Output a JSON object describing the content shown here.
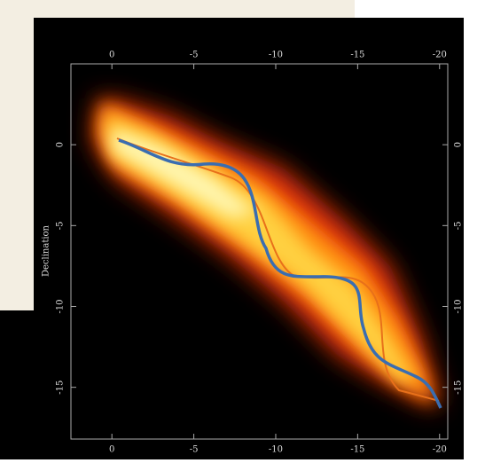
{
  "chart_data": {
    "type": "image",
    "ylabel": "Declination",
    "xlim": [
      2.5,
      -20.5
    ],
    "xticks": [
      0,
      -5,
      -10,
      -15,
      -20
    ],
    "ylim": [
      -18.2,
      5
    ],
    "yticks": [
      0,
      -5,
      -10,
      -15
    ]
  }
}
